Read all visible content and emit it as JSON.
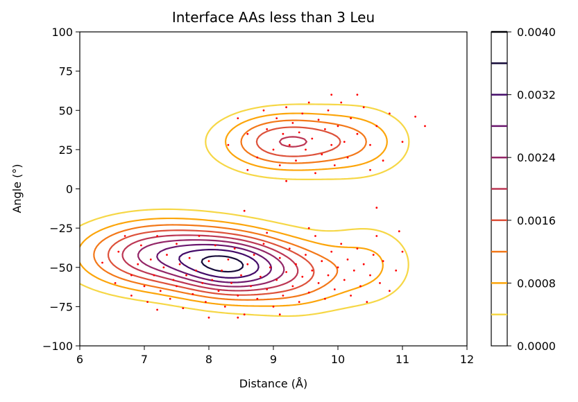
{
  "chart_data": {
    "type": "contour",
    "title": "Interface AAs less than 3 Leu",
    "xlabel": "Distance (Å)",
    "ylabel": "Angle (°)",
    "xlim": [
      6,
      12
    ],
    "ylim": [
      -100,
      100
    ],
    "x_ticks": [
      "6",
      "7",
      "8",
      "9",
      "10",
      "11",
      "12"
    ],
    "y_ticks": [
      "−100",
      "−75",
      "−50",
      "−25",
      "0",
      "25",
      "50",
      "75",
      "100"
    ],
    "x_tick_values": [
      6,
      7,
      8,
      9,
      10,
      11,
      12
    ],
    "y_tick_values": [
      -100,
      -75,
      -50,
      -25,
      0,
      25,
      50,
      75,
      100
    ],
    "colorbar": {
      "range": [
        0,
        0.004
      ],
      "tick_labels": [
        "0.0000",
        "0.0008",
        "0.0016",
        "0.0024",
        "0.0032",
        "0.0040"
      ],
      "tick_values": [
        0,
        0.0008,
        0.0016,
        0.0024,
        0.0032,
        0.004
      ],
      "levels": [
        0.0004,
        0.0008,
        0.0012,
        0.0016,
        0.002,
        0.0024,
        0.0028,
        0.0032,
        0.0036,
        0.004
      ],
      "level_colors": [
        "#f6d746",
        "#fca50a",
        "#f37819",
        "#dd513a",
        "#bc3754",
        "#932667",
        "#6a176e",
        "#420a68",
        "#160b39",
        "#000004"
      ]
    },
    "scatter_color": "#ff0000",
    "density_components": [
      {
        "mx": 7.25,
        "my": -42,
        "sx": 0.85,
        "sy": 15,
        "w": 0.38
      },
      {
        "mx": 8.4,
        "my": -50,
        "sx": 0.6,
        "sy": 14,
        "w": 0.4
      },
      {
        "mx": 9.4,
        "my": -55,
        "sx": 0.55,
        "sy": 16,
        "w": 0.18
      },
      {
        "mx": 10.5,
        "my": -48,
        "sx": 0.5,
        "sy": 18,
        "w": 0.12
      },
      {
        "mx": 9.2,
        "my": 30,
        "sx": 0.7,
        "sy": 13,
        "w": 0.3
      },
      {
        "mx": 10.4,
        "my": 30,
        "sx": 0.55,
        "sy": 16,
        "w": 0.12
      }
    ],
    "scatter_points": [
      [
        6.35,
        -47
      ],
      [
        6.55,
        -60
      ],
      [
        6.6,
        -40
      ],
      [
        6.7,
        -30
      ],
      [
        6.8,
        -55
      ],
      [
        6.9,
        -48
      ],
      [
        6.95,
        -36
      ],
      [
        7.0,
        -62
      ],
      [
        7.05,
        -72
      ],
      [
        7.1,
        -45
      ],
      [
        7.15,
        -55
      ],
      [
        7.2,
        -30
      ],
      [
        7.25,
        -65
      ],
      [
        7.3,
        -50
      ],
      [
        7.35,
        -42
      ],
      [
        7.4,
        -70
      ],
      [
        7.45,
        -58
      ],
      [
        7.5,
        -35
      ],
      [
        7.5,
        -62
      ],
      [
        7.55,
        -48
      ],
      [
        7.6,
        -76
      ],
      [
        7.65,
        -55
      ],
      [
        7.7,
        -44
      ],
      [
        7.75,
        -67
      ],
      [
        7.8,
        -52
      ],
      [
        7.85,
        -30
      ],
      [
        7.9,
        -60
      ],
      [
        7.95,
        -72
      ],
      [
        8.0,
        -46
      ],
      [
        8.05,
        -58
      ],
      [
        8.1,
        -36
      ],
      [
        8.15,
        -65
      ],
      [
        8.2,
        -52
      ],
      [
        8.25,
        -75
      ],
      [
        8.3,
        -45
      ],
      [
        8.35,
        -60
      ],
      [
        8.4,
        -38
      ],
      [
        8.45,
        -68
      ],
      [
        8.5,
        -55
      ],
      [
        8.55,
        -80
      ],
      [
        8.6,
        -48
      ],
      [
        8.65,
        -62
      ],
      [
        8.7,
        -42
      ],
      [
        8.75,
        -70
      ],
      [
        8.8,
        -56
      ],
      [
        8.85,
        -35
      ],
      [
        8.9,
        -64
      ],
      [
        8.95,
        -50
      ],
      [
        9.0,
        -75
      ],
      [
        9.05,
        -58
      ],
      [
        9.1,
        -44
      ],
      [
        9.15,
        -68
      ],
      [
        9.2,
        -53
      ],
      [
        9.25,
        -38
      ],
      [
        9.3,
        -62
      ],
      [
        9.35,
        -48
      ],
      [
        9.4,
        -72
      ],
      [
        9.45,
        -56
      ],
      [
        9.5,
        -42
      ],
      [
        9.55,
        -66
      ],
      [
        9.6,
        -52
      ],
      [
        9.65,
        -30
      ],
      [
        9.7,
        -60
      ],
      [
        9.75,
        -46
      ],
      [
        9.8,
        -70
      ],
      [
        9.85,
        -55
      ],
      [
        9.9,
        -40
      ],
      [
        9.95,
        -64
      ],
      [
        10.0,
        -50
      ],
      [
        10.05,
        -35
      ],
      [
        10.1,
        -58
      ],
      [
        10.15,
        -45
      ],
      [
        10.2,
        -68
      ],
      [
        10.25,
        -52
      ],
      [
        10.3,
        -38
      ],
      [
        10.35,
        -62
      ],
      [
        10.4,
        -48
      ],
      [
        10.45,
        -72
      ],
      [
        10.5,
        -55
      ],
      [
        10.55,
        -42
      ],
      [
        10.6,
        -30
      ],
      [
        10.65,
        -60
      ],
      [
        10.7,
        -46
      ],
      [
        10.8,
        -65
      ],
      [
        10.9,
        -52
      ],
      [
        11.0,
        -40
      ],
      [
        8.0,
        -82
      ],
      [
        8.45,
        -82
      ],
      [
        9.1,
        -80
      ],
      [
        10.95,
        -27
      ],
      [
        7.2,
        -77
      ],
      [
        6.8,
        -68
      ],
      [
        8.55,
        -14
      ],
      [
        8.9,
        -28
      ],
      [
        9.55,
        -25
      ],
      [
        10.6,
        -12
      ],
      [
        8.3,
        28
      ],
      [
        8.45,
        45
      ],
      [
        8.6,
        35
      ],
      [
        8.75,
        20
      ],
      [
        8.85,
        50
      ],
      [
        8.9,
        38
      ],
      [
        9.0,
        25
      ],
      [
        9.05,
        45
      ],
      [
        9.1,
        15
      ],
      [
        9.15,
        35
      ],
      [
        9.2,
        52
      ],
      [
        9.25,
        28
      ],
      [
        9.3,
        42
      ],
      [
        9.35,
        18
      ],
      [
        9.4,
        36
      ],
      [
        9.45,
        48
      ],
      [
        9.5,
        25
      ],
      [
        9.55,
        55
      ],
      [
        9.6,
        32
      ],
      [
        9.65,
        10
      ],
      [
        9.7,
        44
      ],
      [
        9.75,
        22
      ],
      [
        9.8,
        38
      ],
      [
        9.85,
        50
      ],
      [
        9.9,
        28
      ],
      [
        9.95,
        15
      ],
      [
        10.0,
        40
      ],
      [
        10.05,
        55
      ],
      [
        10.1,
        30
      ],
      [
        10.15,
        20
      ],
      [
        10.2,
        45
      ],
      [
        10.3,
        35
      ],
      [
        10.4,
        52
      ],
      [
        10.5,
        28
      ],
      [
        10.6,
        40
      ],
      [
        10.7,
        18
      ],
      [
        10.8,
        48
      ],
      [
        11.0,
        30
      ],
      [
        11.2,
        46
      ],
      [
        11.35,
        40
      ],
      [
        9.9,
        60
      ],
      [
        10.3,
        60
      ],
      [
        8.6,
        12
      ],
      [
        9.2,
        5
      ],
      [
        10.5,
        12
      ]
    ]
  }
}
